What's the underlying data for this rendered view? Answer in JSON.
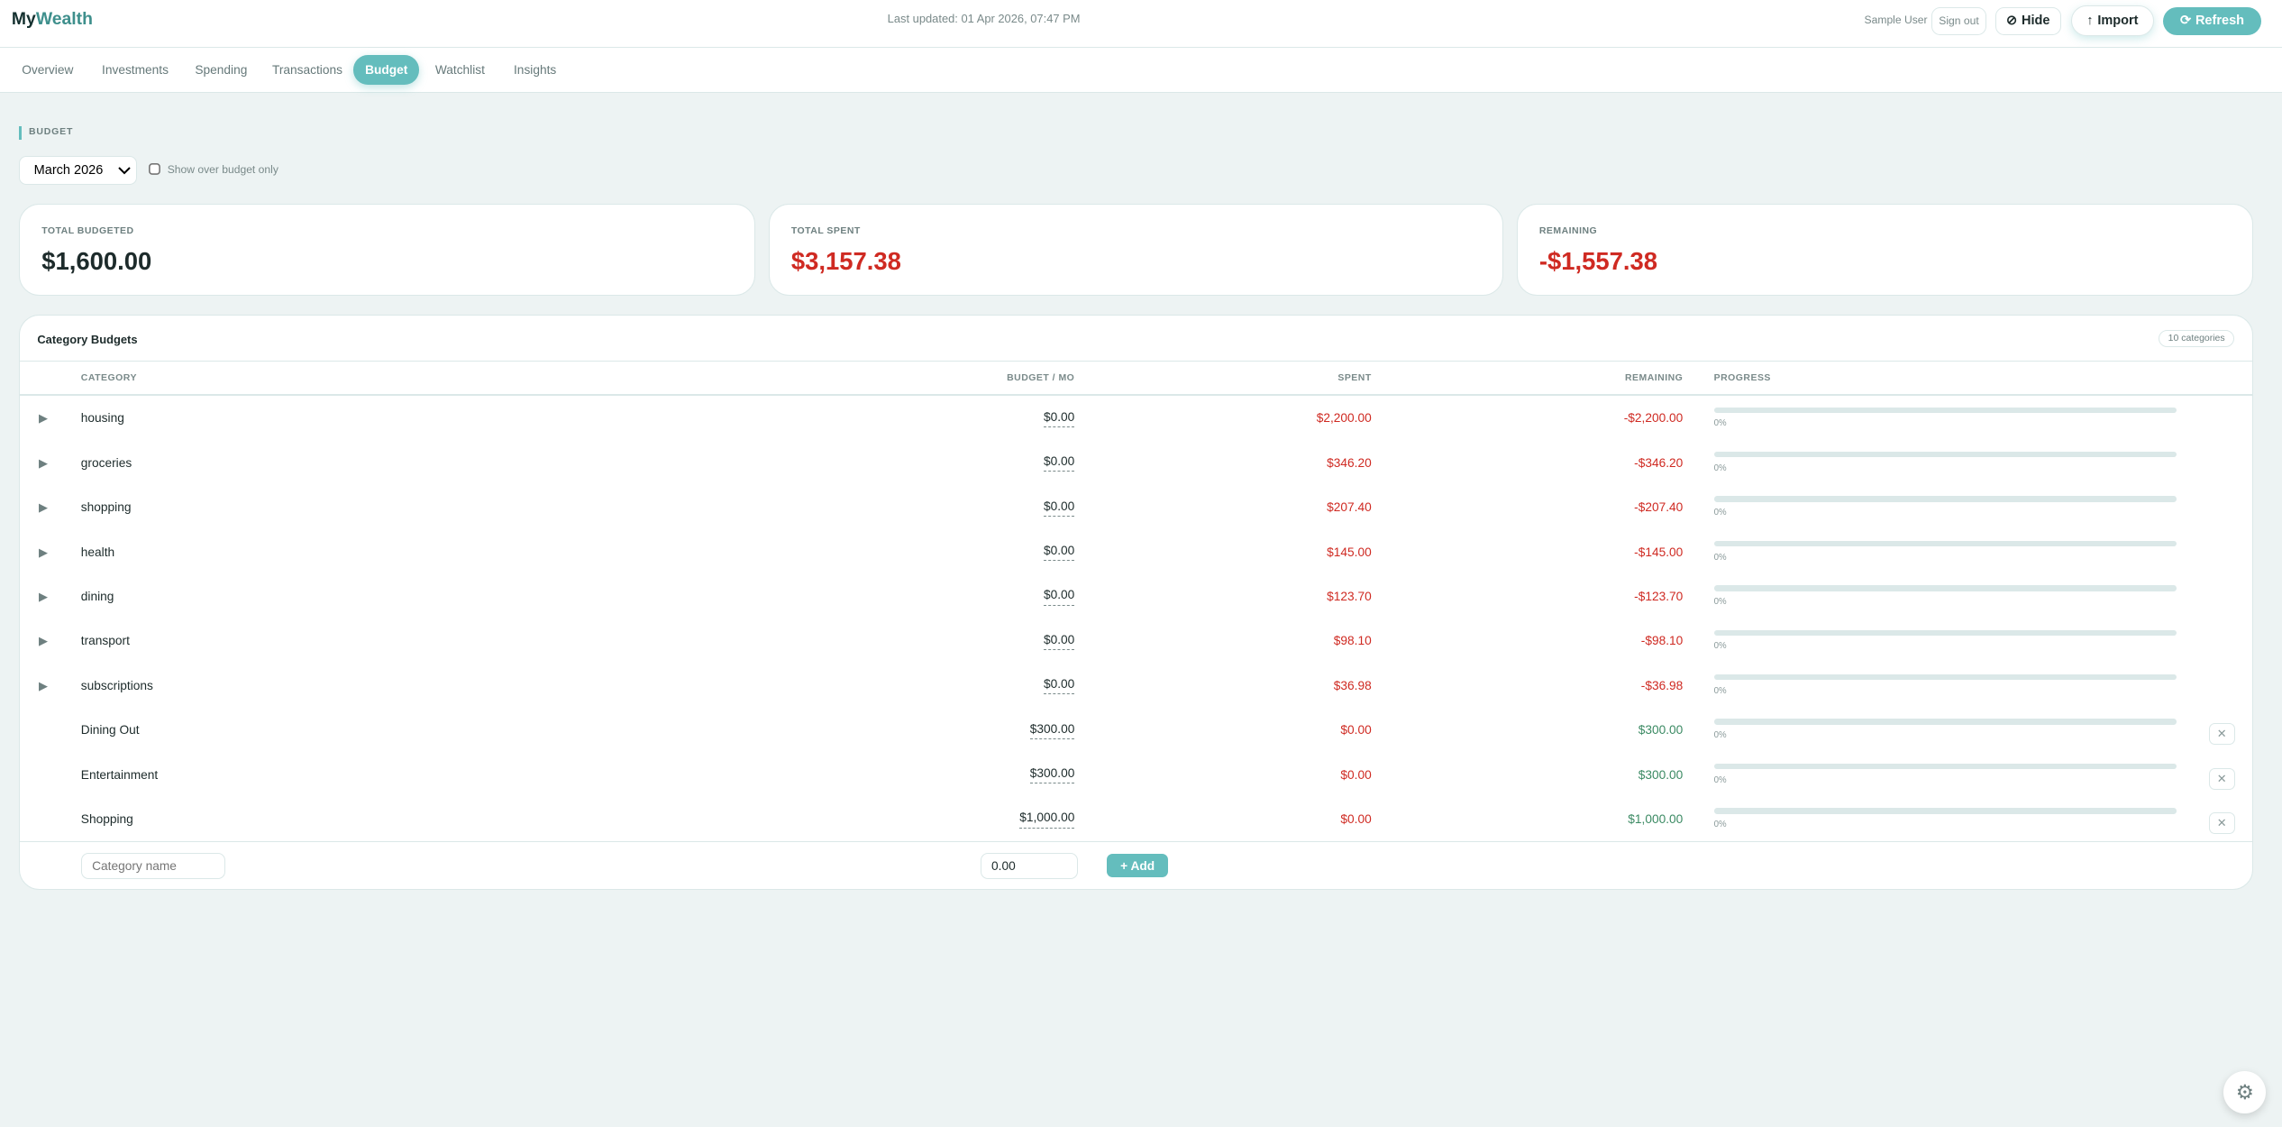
{
  "app": {
    "logo_a": "My",
    "logo_b": "Wealth",
    "last_updated": "Last updated: 01 Apr 2026, 07:47 PM",
    "user": "Sample User",
    "sign_out": "Sign out",
    "hide": "Hide",
    "import": "Import",
    "refresh": "Refresh"
  },
  "tabs": [
    "Overview",
    "Investments",
    "Spending",
    "Transactions",
    "Budget",
    "Watchlist",
    "Insights"
  ],
  "active_tab": "Budget",
  "section_label": "BUDGET",
  "month_select": "March 2026",
  "over_budget_label": "Show over budget only",
  "summary": {
    "budgeted_label": "TOTAL BUDGETED",
    "budgeted": "$1,600.00",
    "spent_label": "TOTAL SPENT",
    "spent": "$3,157.38",
    "remaining_label": "REMAINING",
    "remaining": "-$1,557.38"
  },
  "table": {
    "title": "Category Budgets",
    "count": "10 categories",
    "headers": {
      "category": "CATEGORY",
      "budget": "BUDGET / MO",
      "spent": "SPENT",
      "remaining": "REMAINING",
      "progress": "PROGRESS"
    },
    "rows": [
      {
        "category": "housing",
        "budget": "$0.00",
        "spent": "$2,200.00",
        "remaining": "-$2,200.00",
        "progress": "0%",
        "expandable": true
      },
      {
        "category": "groceries",
        "budget": "$0.00",
        "spent": "$346.20",
        "remaining": "-$346.20",
        "progress": "0%",
        "expandable": true
      },
      {
        "category": "shopping",
        "budget": "$0.00",
        "spent": "$207.40",
        "remaining": "-$207.40",
        "progress": "0%",
        "expandable": true
      },
      {
        "category": "health",
        "budget": "$0.00",
        "spent": "$145.00",
        "remaining": "-$145.00",
        "progress": "0%",
        "expandable": true
      },
      {
        "category": "dining",
        "budget": "$0.00",
        "spent": "$123.70",
        "remaining": "-$123.70",
        "progress": "0%",
        "expandable": true
      },
      {
        "category": "transport",
        "budget": "$0.00",
        "spent": "$98.10",
        "remaining": "-$98.10",
        "progress": "0%",
        "expandable": true
      },
      {
        "category": "subscriptions",
        "budget": "$0.00",
        "spent": "$36.98",
        "remaining": "-$36.98",
        "progress": "0%",
        "expandable": true
      },
      {
        "category": "Dining Out",
        "budget": "$300.00",
        "spent": "$0.00",
        "remaining": "$300.00",
        "progress": "0%",
        "expandable": false
      },
      {
        "category": "Entertainment",
        "budget": "$300.00",
        "spent": "$0.00",
        "remaining": "$300.00",
        "progress": "0%",
        "expandable": false
      },
      {
        "category": "Shopping",
        "budget": "$1,000.00",
        "spent": "$0.00",
        "remaining": "$1,000.00",
        "progress": "0%",
        "expandable": false
      }
    ],
    "new_category_placeholder": "Category name",
    "new_amount_value": "0.00",
    "add_label": "+ Add"
  },
  "colors": {
    "accent": "#64bdbd",
    "negative": "#cf2a22",
    "positive": "#3b8a63"
  }
}
